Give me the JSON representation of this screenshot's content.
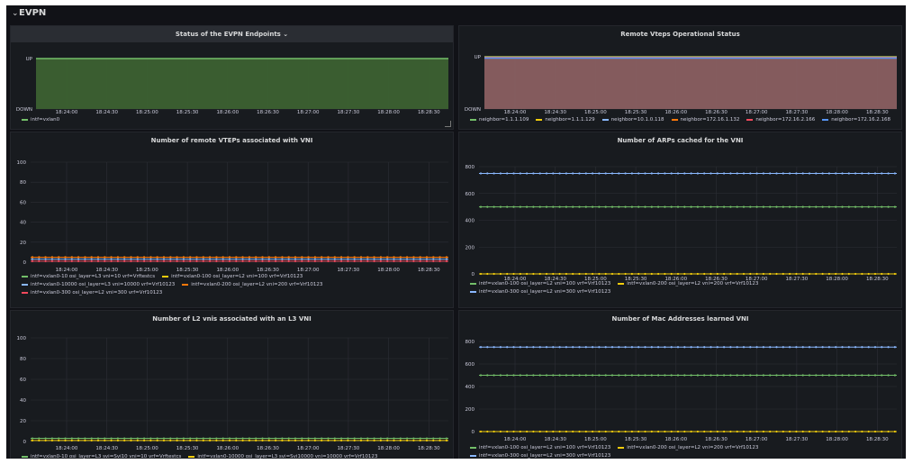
{
  "row": {
    "title": "EVPN",
    "chevron": "⌄"
  },
  "time_ticks_full": [
    "18:24:00",
    "18:24:30",
    "18:25:00",
    "18:25:30",
    "18:26:00",
    "18:26:30",
    "18:27:00",
    "18:27:30",
    "18:28:00",
    "18:28:30"
  ],
  "panels": [
    {
      "title": "Status of the EVPN Endpoints ⌄",
      "chart_data": {
        "type": "area",
        "title": "Status of the EVPN Endpoints",
        "y_ticks": [
          "UP",
          "DOWN"
        ],
        "x_ticks": [
          "18:24:00",
          "18:24:30",
          "18:25:00",
          "18:25:30",
          "18:26:00",
          "18:26:30",
          "18:27:00",
          "18:27:30",
          "18:28:00",
          "18:28:30"
        ],
        "series": [
          {
            "name": "intf=vxlan0",
            "color": "#73bf69",
            "values": "UP"
          }
        ]
      },
      "legend": [
        {
          "label": "intf=vxlan0",
          "color": "#73bf69"
        }
      ]
    },
    {
      "title": "Remote Vteps Operational Status",
      "chart_data": {
        "type": "area",
        "title": "Remote Vteps Operational Status",
        "y_ticks": [
          "UP",
          "DOWN"
        ],
        "x_ticks": [
          "18:24:00",
          "18:24:30",
          "18:25:00",
          "18:25:30",
          "18:26:00",
          "18:26:30",
          "18:27:00",
          "18:27:30",
          "18:28:00",
          "18:28:30"
        ],
        "series": [
          {
            "name": "neighbor=1.1.1.109",
            "color": "#73bf69",
            "values": "UP"
          },
          {
            "name": "neighbor=1.1.1.129",
            "color": "#f2cc0c",
            "values": "UP"
          },
          {
            "name": "neighbor=10.1.0.118",
            "color": "#8ab8ff",
            "values": "UP"
          },
          {
            "name": "neighbor=172.16.1.132",
            "color": "#ff780a",
            "values": "UP"
          },
          {
            "name": "neighbor=172.16.2.166",
            "color": "#f2495c",
            "values": "UP"
          },
          {
            "name": "neighbor=172.16.2.168",
            "color": "#5794f2",
            "values": "UP"
          }
        ]
      },
      "legend": [
        {
          "label": "neighbor=1.1.1.109",
          "color": "#73bf69"
        },
        {
          "label": "neighbor=1.1.1.129",
          "color": "#f2cc0c"
        },
        {
          "label": "neighbor=10.1.0.118",
          "color": "#8ab8ff"
        },
        {
          "label": "neighbor=172.16.1.132",
          "color": "#ff780a"
        },
        {
          "label": "neighbor=172.16.2.166",
          "color": "#f2495c"
        },
        {
          "label": "neighbor=172.16.2.168",
          "color": "#5794f2"
        }
      ]
    },
    {
      "title": "Number of remote VTEPs associated with VNI",
      "chart_data": {
        "type": "line",
        "title": "Number of remote VTEPs associated with VNI",
        "ylim": [
          0,
          100
        ],
        "y_ticks": [
          "100",
          "80",
          "60",
          "40",
          "20",
          "0"
        ],
        "x_ticks": [
          "18:24:00",
          "18:24:30",
          "18:25:00",
          "18:25:30",
          "18:26:00",
          "18:26:30",
          "18:27:00",
          "18:27:30",
          "18:28:00",
          "18:28:30"
        ],
        "series": [
          {
            "name": "intf=vxlan0-10 osi_layer=L3 vni=10 vrf=Vrftestcs",
            "color": "#73bf69",
            "value": 5
          },
          {
            "name": "intf=vxlan0-100 osi_layer=L2 vni=100 vrf=Vrf10123",
            "color": "#f2cc0c",
            "value": 5
          },
          {
            "name": "intf=vxlan0-10000 osi_layer=L3 vni=10000 vrf=Vrf10123",
            "color": "#8ab8ff",
            "value": 3
          },
          {
            "name": "intf=vxlan0-200 osi_layer=L2 vni=200 vrf=Vrf10123",
            "color": "#ff780a",
            "value": 5
          },
          {
            "name": "intf=vxlan0-300 osi_layer=L2 vni=300 vrf=Vrf10123",
            "color": "#f2495c",
            "value": 1
          }
        ]
      },
      "legend": [
        {
          "label": "intf=vxlan0-10 osi_layer=L3 vni=10 vrf=Vrftestcs",
          "color": "#73bf69"
        },
        {
          "label": "intf=vxlan0-100 osi_layer=L2 vni=100 vrf=Vrf10123",
          "color": "#f2cc0c"
        },
        {
          "label": "intf=vxlan0-10000 osi_layer=L3 vni=10000 vrf=Vrf10123",
          "color": "#8ab8ff"
        },
        {
          "label": "intf=vxlan0-200 osi_layer=L2 vni=200 vrf=Vrf10123",
          "color": "#ff780a"
        },
        {
          "label": "intf=vxlan0-300 osi_layer=L2 vni=300 vrf=Vrf10123",
          "color": "#f2495c"
        }
      ]
    },
    {
      "title": "Number of ARPs cached for the VNI",
      "chart_data": {
        "type": "line",
        "title": "Number of ARPs cached for the VNI",
        "ylim": [
          0,
          800
        ],
        "y_ticks": [
          "800",
          "600",
          "400",
          "200",
          "0"
        ],
        "x_ticks": [
          "18:24:00",
          "18:24:30",
          "18:25:00",
          "18:25:30",
          "18:26:00",
          "18:26:30",
          "18:27:00",
          "18:27:30",
          "18:28:00",
          "18:28:30"
        ],
        "series": [
          {
            "name": "intf=vxlan0-100 osi_layer=L2 vni=100 vrf=Vrf10123",
            "color": "#73bf69",
            "value": 500
          },
          {
            "name": "intf=vxlan0-200 osi_layer=L2 vni=200 vrf=Vrf10123",
            "color": "#f2cc0c",
            "value": 0
          },
          {
            "name": "intf=vxlan0-300 osi_layer=L2 vni=300 vrf=Vrf10123",
            "color": "#8ab8ff",
            "value": 750
          }
        ]
      },
      "legend": [
        {
          "label": "intf=vxlan0-100 osi_layer=L2 vni=100 vrf=Vrf10123",
          "color": "#73bf69"
        },
        {
          "label": "intf=vxlan0-200 osi_layer=L2 vni=200 vrf=Vrf10123",
          "color": "#f2cc0c"
        },
        {
          "label": "intf=vxlan0-300 osi_layer=L2 vni=300 vrf=Vrf10123",
          "color": "#8ab8ff"
        }
      ]
    },
    {
      "title": "Number of L2 vnis associated with an L3 VNI",
      "chart_data": {
        "type": "line",
        "title": "Number of L2 vnis associated with an L3 VNI",
        "ylim": [
          0,
          100
        ],
        "y_ticks": [
          "100",
          "80",
          "60",
          "40",
          "20",
          "0"
        ],
        "x_ticks": [
          "18:24:00",
          "18:24:30",
          "18:25:00",
          "18:25:30",
          "18:26:00",
          "18:26:30",
          "18:27:00",
          "18:27:30",
          "18:28:00",
          "18:28:30"
        ],
        "series": [
          {
            "name": "intf=vxlan0-10 osi_layer=L3 svi=Svi10 vni=10 vrf=Vrftestcs",
            "color": "#73bf69",
            "value": 3
          },
          {
            "name": "intf=vxlan0-10000 osi_layer=L3 svi=Svi10000 vni=10000 vrf=Vrf10123",
            "color": "#f2cc0c",
            "value": 1
          }
        ]
      },
      "legend": [
        {
          "label": "intf=vxlan0-10 osi_layer=L3 svi=Svi10 vni=10 vrf=Vrftestcs",
          "color": "#73bf69"
        },
        {
          "label": "intf=vxlan0-10000 osi_layer=L3 svi=Svi10000 vni=10000 vrf=Vrf10123",
          "color": "#f2cc0c"
        }
      ]
    },
    {
      "title": "Number of Mac Addresses learned VNI",
      "chart_data": {
        "type": "line",
        "title": "Number of Mac Addresses learned VNI",
        "ylim": [
          0,
          800
        ],
        "y_ticks": [
          "800",
          "600",
          "400",
          "200",
          "0"
        ],
        "x_ticks": [
          "18:24:00",
          "18:24:30",
          "18:25:00",
          "18:25:30",
          "18:26:00",
          "18:26:30",
          "18:27:00",
          "18:27:30",
          "18:28:00",
          "18:28:30"
        ],
        "series": [
          {
            "name": "intf=vxlan0-100 osi_layer=L2 vni=100 vrf=Vrf10123",
            "color": "#73bf69",
            "value": 500
          },
          {
            "name": "intf=vxlan0-200 osi_layer=L2 vni=200 vrf=Vrf10123",
            "color": "#f2cc0c",
            "value": 0
          },
          {
            "name": "intf=vxlan0-300 osi_layer=L2 vni=300 vrf=Vrf10123",
            "color": "#8ab8ff",
            "value": 750
          }
        ]
      },
      "legend": [
        {
          "label": "intf=vxlan0-100 osi_layer=L2 vni=100 vrf=Vrf10123",
          "color": "#73bf69"
        },
        {
          "label": "intf=vxlan0-200 osi_layer=L2 vni=200 vrf=Vrf10123",
          "color": "#f2cc0c"
        },
        {
          "label": "intf=vxlan0-300 osi_layer=L2 vni=300 vrf=Vrf10123",
          "color": "#8ab8ff"
        }
      ]
    }
  ]
}
